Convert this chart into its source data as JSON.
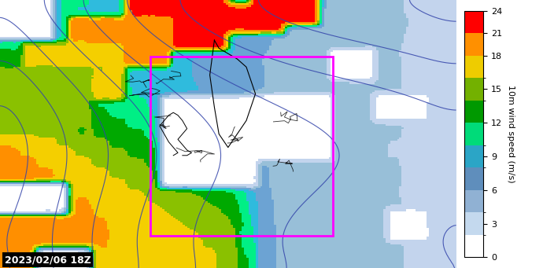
{
  "title": "",
  "timestamp_text": "2023/02/06 18Z",
  "colorbar_label": "10m wind speed (m/s)",
  "colorbar_ticks": [
    0,
    3,
    6,
    9,
    12,
    15,
    18,
    21,
    24
  ],
  "colorbar_colors": [
    "#ffffff",
    "#c8dcf0",
    "#a0c4e8",
    "#78acd8",
    "#5090c8",
    "#00ffff",
    "#00dd00",
    "#008800",
    "#ccdd00",
    "#ffcc00",
    "#ff8800",
    "#ff0000"
  ],
  "colorbar_bounds": [
    0,
    2,
    4,
    6,
    8,
    10,
    12,
    14,
    16,
    18,
    21,
    24
  ],
  "map_bgcolor": "#a8c8e8",
  "box_color": "#ff00ff",
  "contour_color": "#3344aa",
  "figsize": [
    6.9,
    3.41
  ],
  "dpi": 100
}
